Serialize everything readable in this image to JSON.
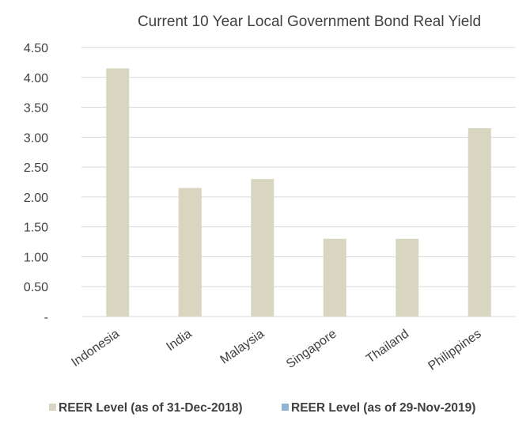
{
  "chart_data": {
    "type": "bar",
    "title": "Current 10 Year Local Government Bond Real Yield",
    "categories": [
      "Indonesia",
      "India",
      "Malaysia",
      "Singapore",
      "Thailand",
      "Philippines"
    ],
    "series": [
      {
        "name": "REER Level (as of 31-Dec-2018)",
        "color": "#d8d5c0",
        "values": [
          4.15,
          2.15,
          2.3,
          1.3,
          1.3,
          3.15
        ]
      },
      {
        "name": "REER Level (as of 29-Nov-2019)",
        "color": "#8eb4d6",
        "values": [
          null,
          null,
          null,
          null,
          null,
          null
        ]
      }
    ],
    "ylim": [
      0,
      4.5
    ],
    "yticks": [
      "-",
      "0.50",
      "1.00",
      "1.50",
      "2.00",
      "2.50",
      "3.00",
      "3.50",
      "4.00",
      "4.50"
    ],
    "grid": true,
    "legend_position": "bottom"
  }
}
